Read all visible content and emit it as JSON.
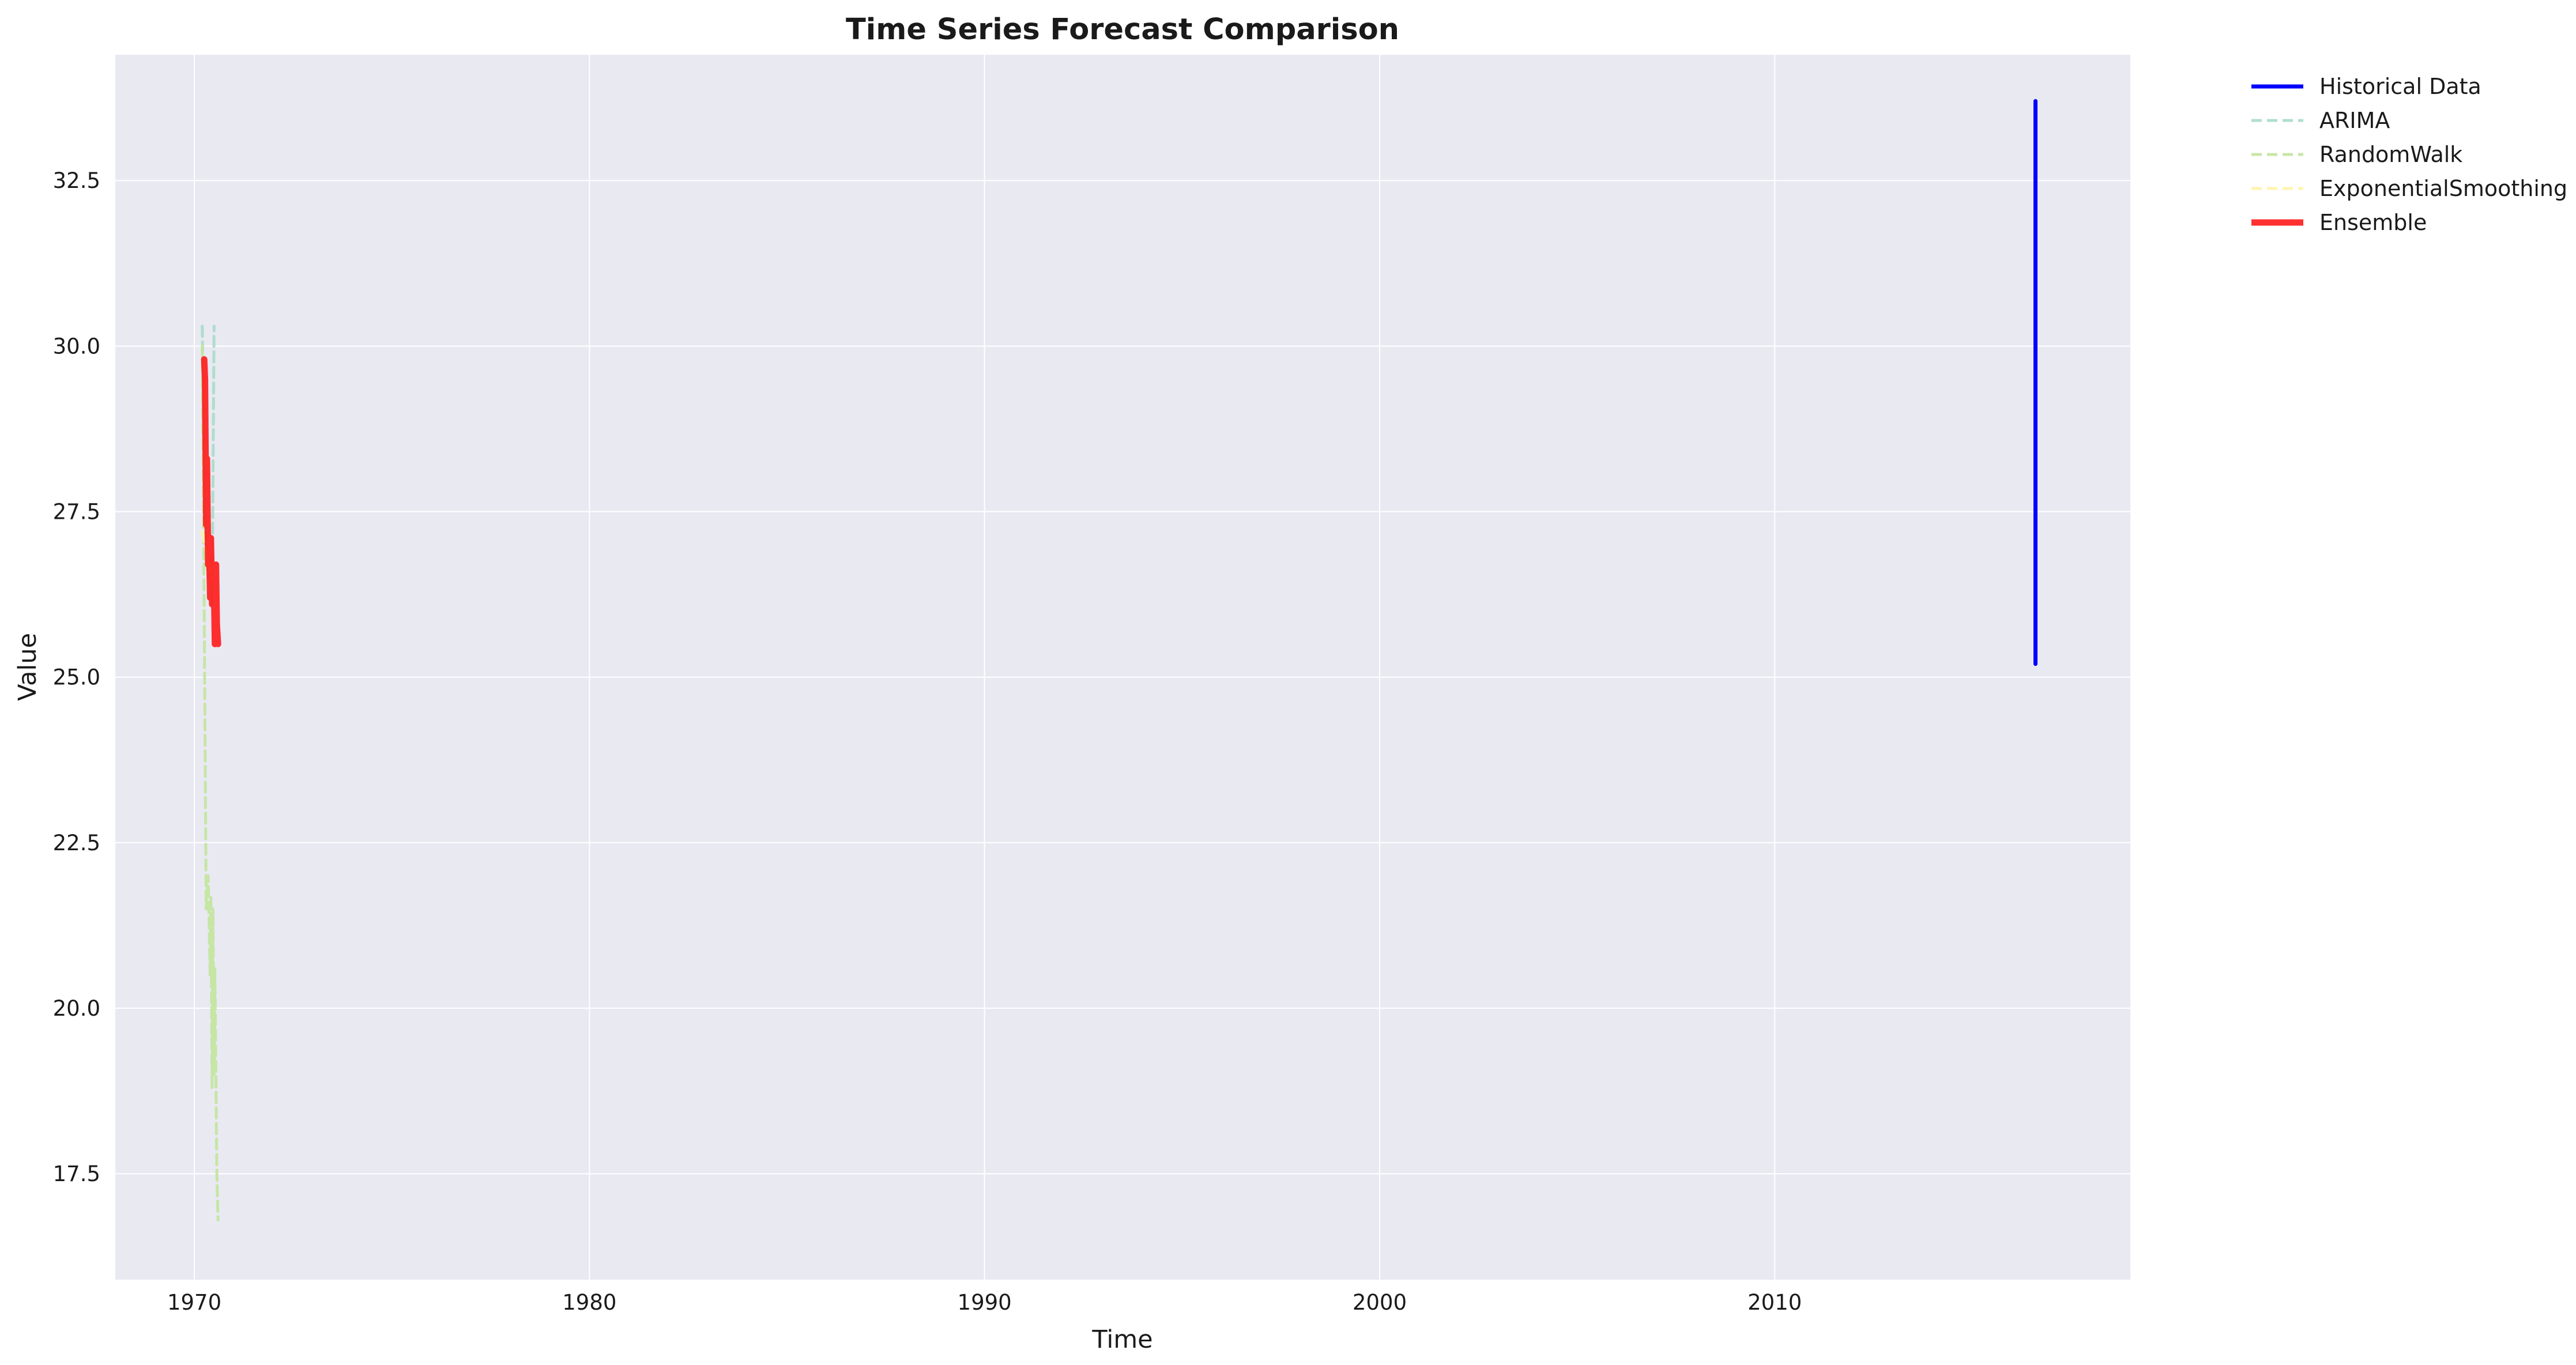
{
  "chart_data": {
    "type": "line",
    "title": "Time Series Forecast Comparison",
    "xlabel": "Time",
    "ylabel": "Value",
    "xlim": [
      1968.0,
      2019.0
    ],
    "ylim": [
      15.9,
      34.4
    ],
    "xticks": [
      1970,
      1980,
      1990,
      2000,
      2010
    ],
    "yticks": [
      17.5,
      20.0,
      22.5,
      25.0,
      27.5,
      30.0,
      32.5
    ],
    "ytick_labels": [
      "17.5",
      "20.0",
      "22.5",
      "25.0",
      "27.5",
      "30.0",
      "32.5"
    ],
    "grid": true,
    "legend_position": "outside-top-right",
    "background": "#e9e9f2",
    "series": [
      {
        "name": "Historical Data",
        "color": "#0000ff",
        "style": "solid",
        "x": [
          2016.6,
          2016.6,
          2016.6,
          2016.6,
          2016.6,
          2016.6,
          2016.6,
          2016.6
        ],
        "y": [
          33.7,
          31.2,
          27.6,
          29.3,
          25.9,
          28.4,
          25.2,
          26.8
        ]
      },
      {
        "name": "ARIMA",
        "color": "#a8dcc8",
        "style": "dashed",
        "x": [
          1970.2,
          1970.25,
          1970.3,
          1970.35,
          1970.4,
          1970.45,
          1970.5
        ],
        "y": [
          30.3,
          28.0,
          27.0,
          26.5,
          26.8,
          26.1,
          30.3
        ]
      },
      {
        "name": "RandomWalk",
        "color": "#c2e59c",
        "style": "dashed",
        "x": [
          1970.2,
          1970.25,
          1970.3,
          1970.35,
          1970.4,
          1970.42,
          1970.45,
          1970.47,
          1970.5,
          1970.52,
          1970.55,
          1970.57,
          1970.6
        ],
        "y": [
          30.0,
          26.0,
          21.5,
          22.0,
          20.5,
          21.7,
          18.8,
          21.5,
          19.0,
          20.6,
          18.8,
          17.5,
          16.8
        ]
      },
      {
        "name": "ExponentialSmoothing",
        "color": "#fff3a8",
        "style": "dashed",
        "x": [
          1970.2,
          1970.3,
          1970.4,
          1970.5,
          1970.6
        ],
        "y": [
          27.2,
          26.9,
          26.6,
          26.4,
          26.2
        ]
      },
      {
        "name": "Ensemble",
        "color": "#ff1a1a",
        "style": "solid",
        "x": [
          1970.25,
          1970.27,
          1970.3,
          1970.32,
          1970.35,
          1970.37,
          1970.4,
          1970.42,
          1970.45,
          1970.47,
          1970.5,
          1970.52,
          1970.55,
          1970.57,
          1970.6
        ],
        "y": [
          29.8,
          29.5,
          27.3,
          28.3,
          26.7,
          27.1,
          26.2,
          27.1,
          26.1,
          26.7,
          26.3,
          25.5,
          26.7,
          25.8,
          25.5
        ]
      }
    ]
  }
}
